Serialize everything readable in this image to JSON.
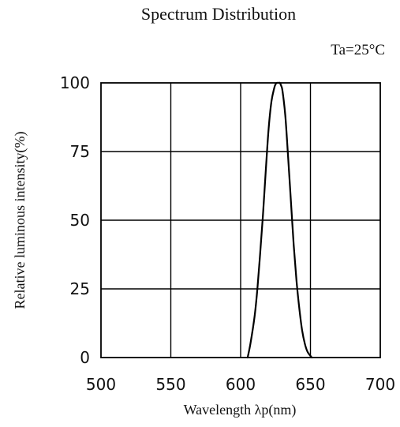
{
  "chart_data": {
    "type": "line",
    "title": "Spectrum Distribution",
    "condition": "Ta=25°C",
    "xlabel": "Wavelength λp(nm)",
    "ylabel": "Relative luminous intensity(%)",
    "xlim": [
      500,
      700
    ],
    "ylim": [
      0,
      100
    ],
    "xticks": [
      500,
      550,
      600,
      650,
      700
    ],
    "xtick_labels": [
      "500",
      "550",
      "600",
      "650",
      "700"
    ],
    "yticks": [
      0,
      25,
      50,
      75,
      100
    ],
    "ytick_labels": [
      "0",
      "25",
      "50",
      "75",
      "100"
    ],
    "grid": true,
    "series": [
      {
        "color": "#000000",
        "x": [
          605,
          607,
          610,
          612,
          614,
          616,
          618,
          620,
          622,
          624,
          625,
          626,
          627,
          628,
          629,
          630,
          632,
          634,
          636,
          638,
          640,
          642,
          644,
          646,
          648,
          651
        ],
        "y": [
          0,
          5,
          15,
          25,
          38,
          52,
          68,
          83,
          93,
          98,
          99.5,
          100,
          100,
          100,
          99,
          97,
          88,
          73,
          57,
          41,
          28,
          18,
          10,
          5,
          2,
          0
        ]
      }
    ]
  }
}
